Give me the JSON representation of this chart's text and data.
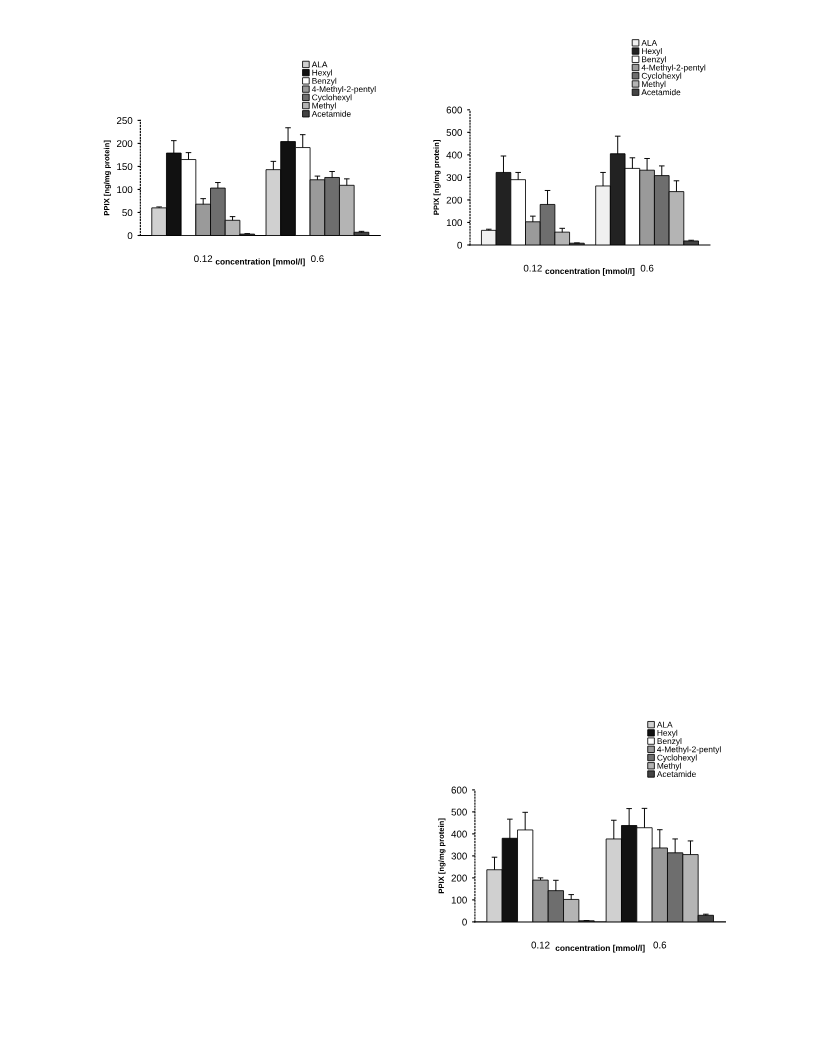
{
  "chart_data": [
    {
      "type": "bar",
      "xlabel": "concentration [mmol/l]",
      "ylabel": "PPIX [ng/mg protein]",
      "categories": [
        "0.12",
        "0.6"
      ],
      "ylim": [
        0,
        250
      ],
      "yticks": [
        0,
        50,
        100,
        150,
        200,
        250
      ],
      "grid": false,
      "legend": "top right",
      "series": [
        {
          "name": "ALA",
          "color": "#d0d0d0",
          "values": [
            60,
            143
          ],
          "errors": [
            2,
            18
          ]
        },
        {
          "name": "Hexyl",
          "color": "#111111",
          "values": [
            179,
            204
          ],
          "errors": [
            27,
            30
          ]
        },
        {
          "name": "Benzyl",
          "color": "#ffffff",
          "values": [
            165,
            191
          ],
          "errors": [
            15,
            28
          ]
        },
        {
          "name": "4-Methyl-2-pentyl",
          "color": "#9a9a9a",
          "values": [
            68,
            121
          ],
          "errors": [
            12,
            8
          ]
        },
        {
          "name": "Cyclohexyl",
          "color": "#6e6e6e",
          "values": [
            103,
            126
          ],
          "errors": [
            12,
            13
          ]
        },
        {
          "name": "Methyl",
          "color": "#b4b4b4",
          "values": [
            33,
            109
          ],
          "errors": [
            8,
            14
          ]
        },
        {
          "name": "Acetamide",
          "color": "#444444",
          "values": [
            3,
            7
          ],
          "errors": [
            1,
            2
          ]
        }
      ]
    },
    {
      "type": "bar",
      "xlabel": "concentration [mmol/l]",
      "ylabel": "PPIX [ng/mg protein]",
      "categories": [
        "0.12",
        "0.6"
      ],
      "ylim": [
        0,
        600
      ],
      "yticks": [
        0,
        100,
        200,
        300,
        400,
        500,
        600
      ],
      "grid": false,
      "legend": "top right",
      "series": [
        {
          "name": "ALA",
          "color": "#f0f0f0",
          "values": [
            65,
            262
          ],
          "errors": [
            5,
            60
          ]
        },
        {
          "name": "Hexyl",
          "color": "#222222",
          "values": [
            322,
            405
          ],
          "errors": [
            73,
            78
          ]
        },
        {
          "name": "Benzyl",
          "color": "#ffffff",
          "values": [
            290,
            340
          ],
          "errors": [
            32,
            47
          ]
        },
        {
          "name": "4-Methyl-2-pentyl",
          "color": "#9a9a9a",
          "values": [
            103,
            332
          ],
          "errors": [
            25,
            52
          ]
        },
        {
          "name": "Cyclohexyl",
          "color": "#6e6e6e",
          "values": [
            180,
            308
          ],
          "errors": [
            62,
            43
          ]
        },
        {
          "name": "Methyl",
          "color": "#b4b4b4",
          "values": [
            57,
            237
          ],
          "errors": [
            17,
            48
          ]
        },
        {
          "name": "Acetamide",
          "color": "#444444",
          "values": [
            8,
            18
          ],
          "errors": [
            1,
            3
          ]
        }
      ]
    },
    {
      "type": "bar",
      "xlabel": "concentration [mmol/l]",
      "ylabel": "PPIX [ng/mg protein]",
      "categories": [
        "0.12",
        "0.6"
      ],
      "ylim": [
        0,
        600
      ],
      "yticks": [
        0,
        100,
        200,
        300,
        400,
        500,
        600
      ],
      "grid": false,
      "legend": "top right",
      "series": [
        {
          "name": "ALA",
          "color": "#d0d0d0",
          "values": [
            237,
            377
          ],
          "errors": [
            57,
            85
          ]
        },
        {
          "name": "Hexyl",
          "color": "#111111",
          "values": [
            380,
            438
          ],
          "errors": [
            87,
            77
          ]
        },
        {
          "name": "Benzyl",
          "color": "#ffffff",
          "values": [
            418,
            428
          ],
          "errors": [
            80,
            88
          ]
        },
        {
          "name": "4-Methyl-2-pentyl",
          "color": "#9a9a9a",
          "values": [
            190,
            336
          ],
          "errors": [
            10,
            83
          ]
        },
        {
          "name": "Cyclohexyl",
          "color": "#6e6e6e",
          "values": [
            142,
            314
          ],
          "errors": [
            47,
            63
          ]
        },
        {
          "name": "Methyl",
          "color": "#b4b4b4",
          "values": [
            102,
            306
          ],
          "errors": [
            22,
            62
          ]
        },
        {
          "name": "Acetamide",
          "color": "#444444",
          "values": [
            5,
            30
          ],
          "errors": [
            1,
            5
          ]
        }
      ]
    }
  ]
}
